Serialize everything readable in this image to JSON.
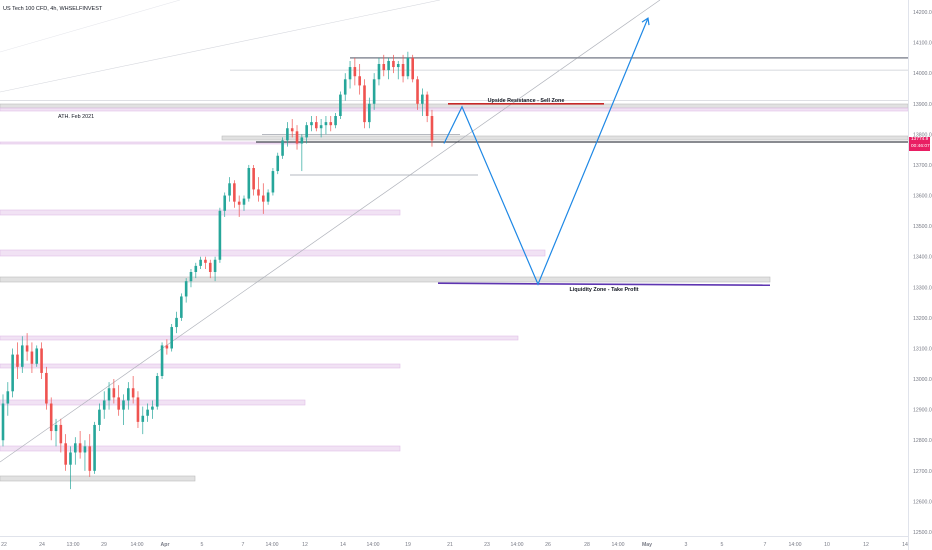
{
  "header": {
    "symbol": "US Tech 100 CFD, 4h, WHSELFINVEST"
  },
  "price_tag": {
    "price": "13774.9",
    "countdown": "00:46:07"
  },
  "colors": {
    "bull": "#26a69a",
    "bear": "#ef5350",
    "resistance": "#c62828",
    "support": "#5e35b1",
    "projection": "#1e88e5",
    "price_tag": "#e91e63",
    "zone_pink": "#e1bee7",
    "zone_gray": "#bdbdbd"
  },
  "chart_data": {
    "type": "candlestick",
    "title": "",
    "ylim": [
      12500,
      14200
    ],
    "y_ticks": [
      "14200.0",
      "14100.0",
      "14000.0",
      "13900.0",
      "13800.0",
      "13700.0",
      "13600.0",
      "13500.0",
      "13400.0",
      "13300.0",
      "13200.0",
      "13100.0",
      "13000.0",
      "12900.0",
      "12800.0",
      "12700.0",
      "12600.0",
      "12500.0"
    ],
    "x_ticks": [
      "22",
      "24",
      "13:00",
      "29",
      "14:00",
      "Apr",
      "5",
      "7",
      "14:00",
      "12",
      "14",
      "14:00",
      "19",
      "21",
      "23",
      "14:00",
      "26",
      "28",
      "14:00",
      "May",
      "3",
      "5",
      "7",
      "14:00",
      "10",
      "12",
      "14"
    ],
    "current_price": 13774.9,
    "candles_ohlc": [
      [
        12800,
        12950,
        12780,
        12920
      ],
      [
        12920,
        12990,
        12880,
        12960
      ],
      [
        12960,
        13100,
        12940,
        13080
      ],
      [
        13080,
        13120,
        13000,
        13040
      ],
      [
        13040,
        13140,
        13020,
        13110
      ],
      [
        13110,
        13150,
        13060,
        13090
      ],
      [
        13090,
        13120,
        13020,
        13050
      ],
      [
        13050,
        13110,
        13040,
        13100
      ],
      [
        13100,
        13120,
        13000,
        13020
      ],
      [
        13020,
        13040,
        12900,
        12920
      ],
      [
        12920,
        12940,
        12800,
        12830
      ],
      [
        12830,
        12870,
        12780,
        12850
      ],
      [
        12850,
        12870,
        12760,
        12790
      ],
      [
        12790,
        12820,
        12700,
        12720
      ],
      [
        12720,
        12780,
        12640,
        12760
      ],
      [
        12760,
        12810,
        12720,
        12790
      ],
      [
        12790,
        12830,
        12740,
        12760
      ],
      [
        12760,
        12800,
        12700,
        12780
      ],
      [
        12780,
        12820,
        12680,
        12700
      ],
      [
        12700,
        12860,
        12690,
        12850
      ],
      [
        12850,
        12920,
        12830,
        12900
      ],
      [
        12900,
        12960,
        12870,
        12930
      ],
      [
        12930,
        12990,
        12900,
        12970
      ],
      [
        12970,
        13000,
        12920,
        12940
      ],
      [
        12940,
        12980,
        12880,
        12900
      ],
      [
        12900,
        12950,
        12850,
        12930
      ],
      [
        12930,
        12990,
        12900,
        12970
      ],
      [
        12970,
        13010,
        12920,
        12940
      ],
      [
        12940,
        12960,
        12840,
        12860
      ],
      [
        12860,
        12910,
        12820,
        12880
      ],
      [
        12880,
        12920,
        12860,
        12900
      ],
      [
        12900,
        12930,
        12870,
        12910
      ],
      [
        12910,
        13020,
        12900,
        13010
      ],
      [
        13010,
        13120,
        13000,
        13110
      ],
      [
        13110,
        13130,
        13080,
        13100
      ],
      [
        13100,
        13180,
        13090,
        13170
      ],
      [
        13170,
        13220,
        13150,
        13200
      ],
      [
        13200,
        13280,
        13190,
        13270
      ],
      [
        13270,
        13330,
        13250,
        13320
      ],
      [
        13320,
        13360,
        13300,
        13350
      ],
      [
        13350,
        13380,
        13330,
        13370
      ],
      [
        13370,
        13400,
        13360,
        13390
      ],
      [
        13390,
        13400,
        13360,
        13380
      ],
      [
        13380,
        13390,
        13330,
        13350
      ],
      [
        13350,
        13400,
        13320,
        13390
      ],
      [
        13390,
        13560,
        13380,
        13550
      ],
      [
        13550,
        13610,
        13530,
        13600
      ],
      [
        13600,
        13660,
        13580,
        13640
      ],
      [
        13640,
        13650,
        13560,
        13580
      ],
      [
        13580,
        13600,
        13530,
        13570
      ],
      [
        13570,
        13600,
        13550,
        13590
      ],
      [
        13590,
        13700,
        13580,
        13690
      ],
      [
        13690,
        13700,
        13600,
        13620
      ],
      [
        13620,
        13660,
        13580,
        13600
      ],
      [
        13600,
        13640,
        13540,
        13580
      ],
      [
        13580,
        13620,
        13570,
        13610
      ],
      [
        13610,
        13690,
        13600,
        13680
      ],
      [
        13680,
        13740,
        13670,
        13730
      ],
      [
        13730,
        13790,
        13720,
        13780
      ],
      [
        13780,
        13840,
        13760,
        13820
      ],
      [
        13820,
        13850,
        13790,
        13810
      ],
      [
        13810,
        13830,
        13750,
        13770
      ],
      [
        13770,
        13800,
        13680,
        13790
      ],
      [
        13790,
        13840,
        13770,
        13830
      ],
      [
        13830,
        13860,
        13810,
        13840
      ],
      [
        13840,
        13860,
        13810,
        13820
      ],
      [
        13820,
        13850,
        13790,
        13830
      ],
      [
        13830,
        13860,
        13800,
        13840
      ],
      [
        13840,
        13860,
        13810,
        13830
      ],
      [
        13830,
        13870,
        13820,
        13860
      ],
      [
        13860,
        13940,
        13850,
        13930
      ],
      [
        13930,
        14000,
        13910,
        13980
      ],
      [
        13980,
        14040,
        13950,
        14020
      ],
      [
        14020,
        14050,
        13960,
        13990
      ],
      [
        13990,
        14030,
        13930,
        13960
      ],
      [
        13960,
        13980,
        13820,
        13840
      ],
      [
        13840,
        13920,
        13820,
        13900
      ],
      [
        13900,
        14000,
        13880,
        13980
      ],
      [
        13980,
        14050,
        13960,
        14030
      ],
      [
        14030,
        14060,
        13990,
        14010
      ],
      [
        14010,
        14050,
        13980,
        14040
      ],
      [
        14040,
        14060,
        14000,
        14020
      ],
      [
        14020,
        14040,
        13980,
        14030
      ],
      [
        14030,
        14060,
        13970,
        13990
      ],
      [
        13990,
        14070,
        13980,
        14050
      ],
      [
        14050,
        14060,
        13970,
        13980
      ],
      [
        13980,
        13990,
        13880,
        13900
      ],
      [
        13900,
        13950,
        13860,
        13930
      ],
      [
        13930,
        13940,
        13840,
        13860
      ],
      [
        13860,
        13880,
        13760,
        13780
      ]
    ],
    "annotations": [
      {
        "label": "ATH. Feb 2021",
        "price": 13850
      },
      {
        "label": "Upside Resistance - Sell Zone",
        "price": 13900
      },
      {
        "label": "Liquidity Zone - Take Profit",
        "price": 13310
      }
    ],
    "horizontal_levels": [
      13775,
      14050,
      14010,
      13800,
      13910
    ],
    "projection_path_prices": [
      13770,
      13890,
      13310,
      14180
    ]
  }
}
